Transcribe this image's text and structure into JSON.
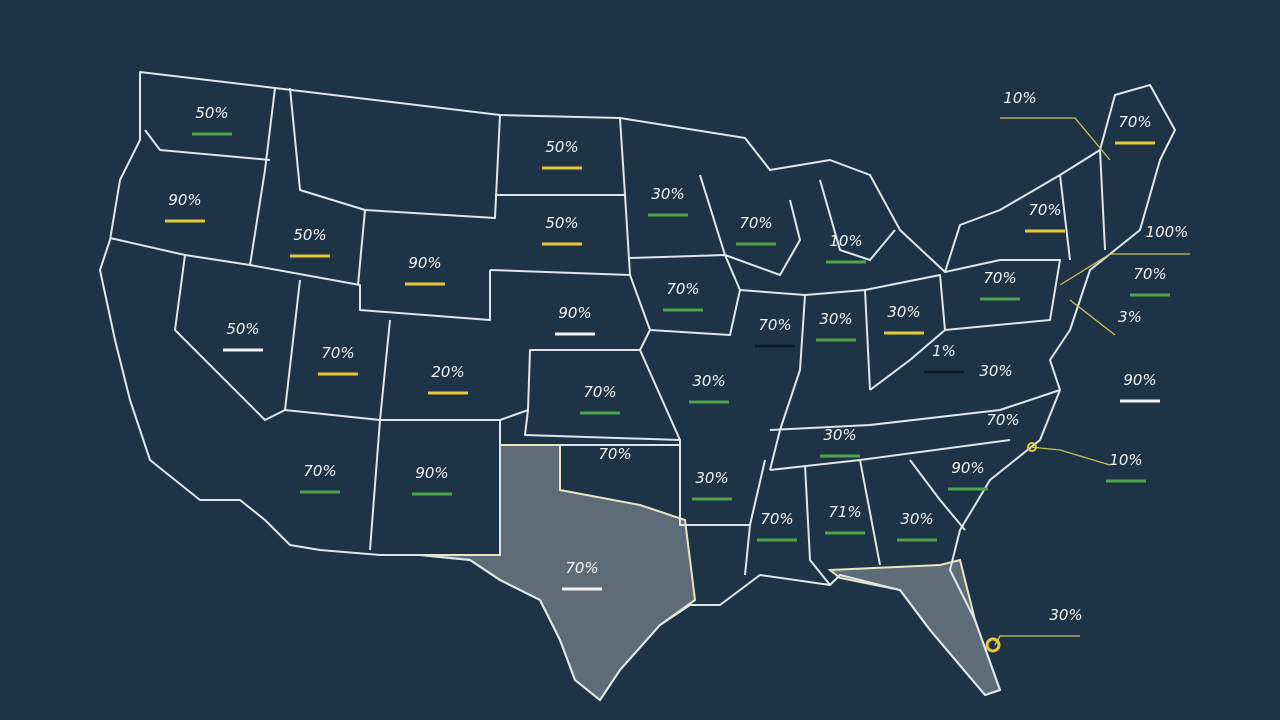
{
  "map": {
    "labels": [
      {
        "text": "50%"
      },
      {
        "text": "90%"
      },
      {
        "text": "50%"
      },
      {
        "text": "90%"
      },
      {
        "text": "50%"
      },
      {
        "text": "50%"
      },
      {
        "text": "30%"
      },
      {
        "text": "90%"
      },
      {
        "text": "50%"
      },
      {
        "text": "70%"
      },
      {
        "text": "20%"
      },
      {
        "text": "70%"
      },
      {
        "text": "70%"
      },
      {
        "text": "70%"
      },
      {
        "text": "10%"
      },
      {
        "text": "70%"
      },
      {
        "text": "30%"
      },
      {
        "text": "30%"
      },
      {
        "text": "70%"
      },
      {
        "text": "70%"
      },
      {
        "text": "70%"
      },
      {
        "text": "10%"
      },
      {
        "text": "100%"
      },
      {
        "text": "70%"
      },
      {
        "text": "3%"
      },
      {
        "text": "90%"
      },
      {
        "text": "1%"
      },
      {
        "text": "30%"
      },
      {
        "text": "30%"
      },
      {
        "text": "30%"
      },
      {
        "text": "70%"
      },
      {
        "text": "10%"
      },
      {
        "text": "70%"
      },
      {
        "text": "30%"
      },
      {
        "text": "90%"
      },
      {
        "text": "70%"
      },
      {
        "text": "90%"
      },
      {
        "text": "70%"
      },
      {
        "text": "71%"
      },
      {
        "text": "30%"
      },
      {
        "text": "70%"
      },
      {
        "text": "30%"
      }
    ]
  }
}
